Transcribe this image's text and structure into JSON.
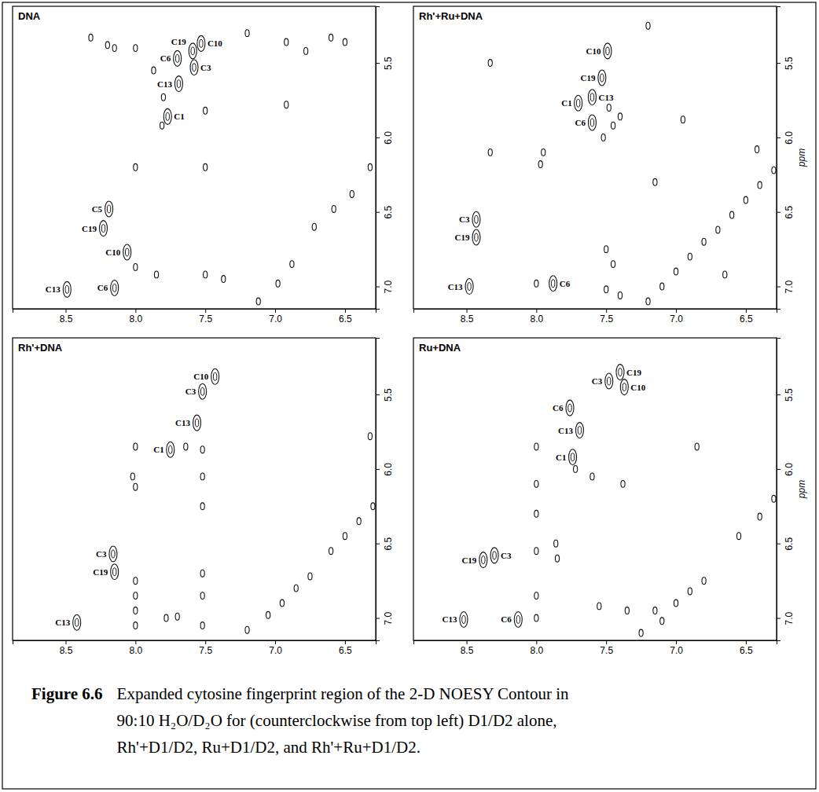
{
  "chart_data": [
    {
      "type": "scatter",
      "title": "DNA",
      "marker": "ellipse",
      "xlim": [
        8.88,
        6.28
      ],
      "xticks": [
        8.5,
        {
          "value": 8,
          "label": "8.0"
        },
        7.5,
        {
          "value": 7,
          "label": "7.0"
        },
        6.5
      ],
      "ylim": [
        5.12,
        7.15
      ],
      "yticks": [
        5.5,
        {
          "value": 6,
          "label": "6.0"
        },
        6.5,
        {
          "value": 7,
          "label": "7.0"
        }
      ],
      "x": [
        7.59,
        7.53,
        7.7,
        7.58,
        7.69,
        7.77,
        8.19,
        8.23,
        8.06,
        8.49,
        8.15,
        8.32,
        8.2,
        8.15,
        8.0,
        7.87,
        7.8,
        7.5,
        7.81,
        8.0,
        7.5,
        7.2,
        6.92,
        6.78,
        6.6,
        6.5,
        6.92,
        8.0,
        7.85,
        7.5,
        7.37,
        7.12,
        6.98,
        6.88,
        6.72,
        6.58,
        6.45,
        6.32
      ],
      "y": [
        5.42,
        5.37,
        5.47,
        5.53,
        5.64,
        5.86,
        6.48,
        6.61,
        6.77,
        7.02,
        7.01,
        5.33,
        5.38,
        5.4,
        5.4,
        5.55,
        5.73,
        5.82,
        5.92,
        6.2,
        6.2,
        5.3,
        5.36,
        5.42,
        5.33,
        5.36,
        5.78,
        6.87,
        6.92,
        6.92,
        6.95,
        7.1,
        6.98,
        6.85,
        6.6,
        6.48,
        6.38,
        6.2
      ],
      "labels": [
        "C19",
        "C10",
        "C6",
        "C3",
        "C13",
        "C1",
        "C5",
        "C19",
        "C10",
        "C13",
        "C6",
        null,
        null,
        null,
        null,
        null,
        null,
        null,
        null,
        null,
        null,
        null,
        null,
        null,
        null,
        null,
        null,
        null,
        null,
        null,
        null,
        null,
        null,
        null,
        null,
        null,
        null,
        null
      ]
    },
    {
      "type": "scatter",
      "title": "Rh'+Ru+DNA",
      "marker": "ellipse",
      "y_label": "ppm",
      "xlim": [
        8.88,
        6.28
      ],
      "xticks": [
        8.5,
        {
          "value": 8,
          "label": "8.0"
        },
        7.5,
        {
          "value": 7,
          "label": "7.0"
        },
        6.5
      ],
      "ylim": [
        5.12,
        7.15
      ],
      "yticks": [
        5.5,
        {
          "value": 6,
          "label": "6.0"
        },
        6.5,
        {
          "value": 7,
          "label": "7.0"
        }
      ],
      "x": [
        7.49,
        7.53,
        7.6,
        7.7,
        7.6,
        8.43,
        8.43,
        8.48,
        7.88,
        8.0,
        8.33,
        8.33,
        7.95,
        7.97,
        7.48,
        7.45,
        7.4,
        7.52,
        7.15,
        6.95,
        6.65,
        6.42,
        7.2,
        7.5,
        7.45,
        7.5,
        7.4,
        7.2,
        7.1,
        7.0,
        6.9,
        6.8,
        6.7,
        6.6,
        6.5,
        6.4,
        6.3
      ],
      "y": [
        5.42,
        5.6,
        5.73,
        5.77,
        5.9,
        6.55,
        6.67,
        7.0,
        6.98,
        6.98,
        5.5,
        6.1,
        6.1,
        6.18,
        5.8,
        5.92,
        5.86,
        6.0,
        6.3,
        5.88,
        6.92,
        6.08,
        5.25,
        6.75,
        6.85,
        7.02,
        7.06,
        7.1,
        7.0,
        6.9,
        6.8,
        6.7,
        6.62,
        6.52,
        6.42,
        6.32,
        6.22
      ],
      "labels": [
        "C10",
        "C19",
        "C13",
        "C1",
        "C6",
        "C3",
        "C19",
        "C13",
        "C6",
        null,
        null,
        null,
        null,
        null,
        null,
        null,
        null,
        null,
        null,
        null,
        null,
        null,
        null,
        null,
        null,
        null,
        null,
        null,
        null,
        null,
        null,
        null,
        null,
        null,
        null,
        null,
        null
      ]
    },
    {
      "type": "scatter",
      "title": "Rh'+DNA",
      "marker": "ellipse",
      "xlim": [
        8.88,
        6.28
      ],
      "xticks": [
        8.5,
        {
          "value": 8,
          "label": "8.0"
        },
        7.5,
        {
          "value": 7,
          "label": "7.0"
        },
        6.5
      ],
      "ylim": [
        5.12,
        7.15
      ],
      "yticks": [
        5.5,
        {
          "value": 6,
          "label": "6.0"
        },
        6.5,
        {
          "value": 7,
          "label": "7.0"
        }
      ],
      "x": [
        7.43,
        7.52,
        7.56,
        7.75,
        8.16,
        8.15,
        8.42,
        7.64,
        7.52,
        8.0,
        8.02,
        8.0,
        7.52,
        7.52,
        7.52,
        7.52,
        7.52,
        7.78,
        7.7,
        8.0,
        8.0,
        8.0,
        8.0,
        6.32,
        7.2,
        7.05,
        6.95,
        6.85,
        6.75,
        6.6,
        6.5,
        6.4,
        6.3
      ],
      "y": [
        5.38,
        5.48,
        5.69,
        5.87,
        6.57,
        6.69,
        7.03,
        5.85,
        5.87,
        5.85,
        6.05,
        6.12,
        6.05,
        6.25,
        6.7,
        6.85,
        7.05,
        7.0,
        6.99,
        6.75,
        6.85,
        6.95,
        7.05,
        5.78,
        7.08,
        6.98,
        6.9,
        6.8,
        6.72,
        6.55,
        6.45,
        6.35,
        6.25
      ],
      "labels": [
        "C10",
        "C3",
        "C13",
        "C1",
        "C3",
        "C19",
        "C13",
        null,
        null,
        null,
        null,
        null,
        null,
        null,
        null,
        null,
        null,
        null,
        null,
        null,
        null,
        null,
        null,
        null,
        null,
        null,
        null,
        null,
        null,
        null,
        null,
        null,
        null
      ]
    },
    {
      "type": "scatter",
      "title": "Ru+DNA",
      "marker": "ellipse",
      "y_label": "ppm",
      "xlim": [
        8.88,
        6.28
      ],
      "xticks": [
        8.5,
        {
          "value": 8,
          "label": "8.0"
        },
        7.5,
        {
          "value": 7,
          "label": "7.0"
        },
        6.5
      ],
      "ylim": [
        5.12,
        7.15
      ],
      "yticks": [
        5.5,
        {
          "value": 6,
          "label": "6.0"
        },
        6.5,
        {
          "value": 7,
          "label": "7.0"
        }
      ],
      "x": [
        7.4,
        7.48,
        7.37,
        7.76,
        7.69,
        7.74,
        8.38,
        8.3,
        8.52,
        8.13,
        8.0,
        8.0,
        8.0,
        8.0,
        8.0,
        8.0,
        7.86,
        7.85,
        7.72,
        7.6,
        7.38,
        7.15,
        7.35,
        7.55,
        6.85,
        7.25,
        7.1,
        7.0,
        6.9,
        6.8,
        6.55,
        6.4,
        6.3
      ],
      "y": [
        5.35,
        5.41,
        5.45,
        5.59,
        5.74,
        5.92,
        6.61,
        6.58,
        7.01,
        7.01,
        5.85,
        6.1,
        6.3,
        6.55,
        6.85,
        7.0,
        6.5,
        6.6,
        6.0,
        6.05,
        6.1,
        6.95,
        6.95,
        6.92,
        5.85,
        7.1,
        7.02,
        6.9,
        6.82,
        6.75,
        6.45,
        6.32,
        6.2
      ],
      "labels": [
        "C19",
        "C3",
        "C10",
        "C6",
        "C13",
        "C1",
        "C19",
        "C3",
        "C13",
        "C6",
        null,
        null,
        null,
        null,
        null,
        null,
        null,
        null,
        null,
        null,
        null,
        null,
        null,
        null,
        null,
        null,
        null,
        null,
        null,
        null,
        null,
        null,
        null
      ]
    }
  ],
  "caption": {
    "label": "Figure 6.6",
    "lines": [
      "Expanded cytosine fingerprint region of the 2-D NOESY Contour in",
      "90:10 H₂O/D₂O for (counterclockwise from top left) D1/D2 alone,",
      "Rh'+D1/D2, Ru+D1/D2, and Rh'+Ru+D1/D2."
    ]
  }
}
